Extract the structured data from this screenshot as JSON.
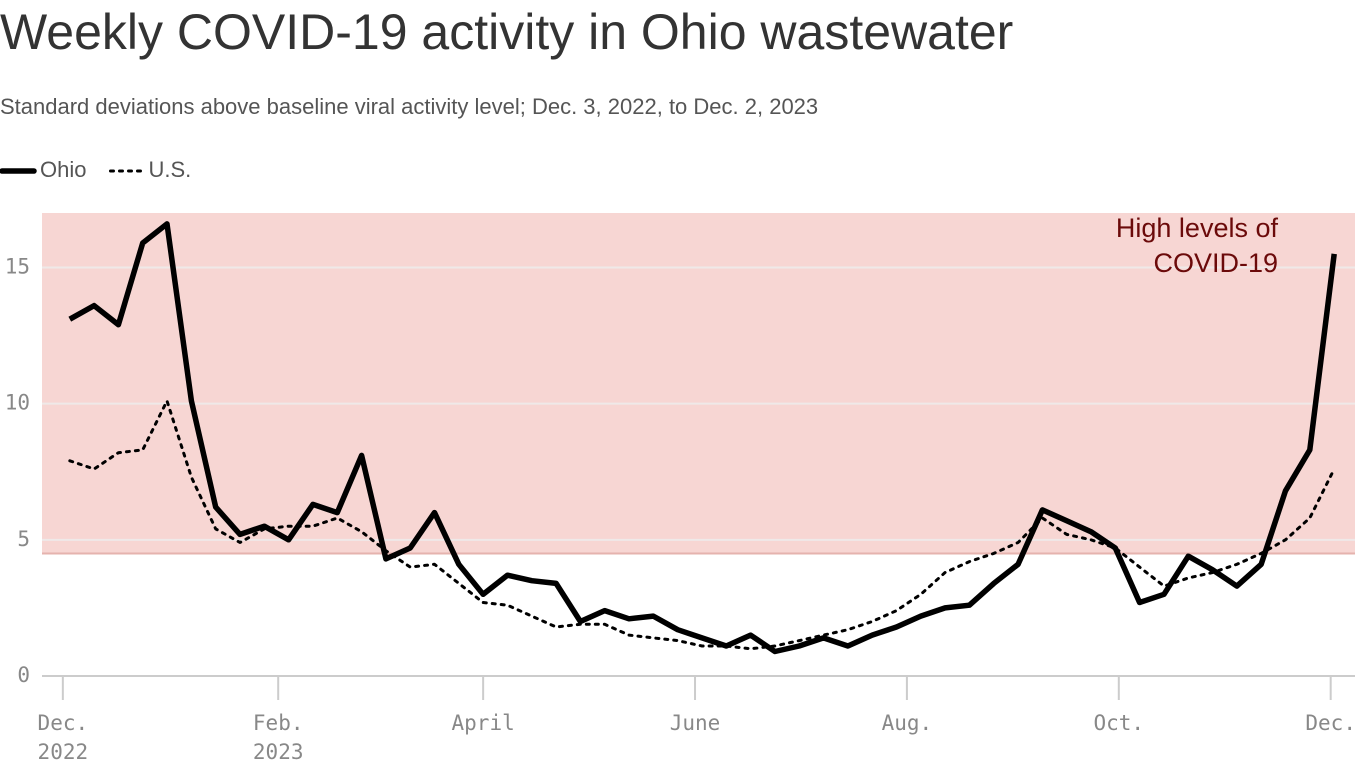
{
  "chart_data": {
    "type": "line",
    "title": "Weekly COVID-19 activity in Ohio wastewater",
    "subtitle": "Standard deviations above baseline viral activity level; Dec. 3, 2022, to Dec. 2, 2023",
    "x": [
      "2022-12-03",
      "2022-12-10",
      "2022-12-17",
      "2022-12-24",
      "2022-12-31",
      "2023-01-07",
      "2023-01-14",
      "2023-01-21",
      "2023-01-28",
      "2023-02-04",
      "2023-02-11",
      "2023-02-18",
      "2023-02-25",
      "2023-03-04",
      "2023-03-11",
      "2023-03-18",
      "2023-03-25",
      "2023-04-01",
      "2023-04-08",
      "2023-04-15",
      "2023-04-22",
      "2023-04-29",
      "2023-05-06",
      "2023-05-13",
      "2023-05-20",
      "2023-05-27",
      "2023-06-03",
      "2023-06-10",
      "2023-06-17",
      "2023-06-24",
      "2023-07-01",
      "2023-07-08",
      "2023-07-15",
      "2023-07-22",
      "2023-07-29",
      "2023-08-05",
      "2023-08-12",
      "2023-08-19",
      "2023-08-26",
      "2023-09-02",
      "2023-09-09",
      "2023-09-16",
      "2023-09-23",
      "2023-09-30",
      "2023-10-07",
      "2023-10-14",
      "2023-10-21",
      "2023-10-28",
      "2023-11-04",
      "2023-11-11",
      "2023-11-18",
      "2023-11-25",
      "2023-12-02"
    ],
    "series": [
      {
        "name": "Ohio",
        "color": "#000000",
        "style": "solid",
        "values": [
          13.1,
          13.6,
          12.9,
          15.9,
          16.6,
          10.1,
          6.2,
          5.2,
          5.5,
          5.0,
          6.3,
          6.0,
          8.1,
          4.3,
          4.7,
          6.0,
          4.1,
          3.0,
          3.7,
          3.5,
          3.4,
          2.0,
          2.4,
          2.1,
          2.2,
          1.7,
          1.4,
          1.1,
          1.5,
          0.9,
          1.1,
          1.4,
          1.1,
          1.5,
          1.8,
          2.2,
          2.5,
          2.6,
          3.4,
          4.1,
          6.1,
          5.7,
          5.3,
          4.7,
          2.7,
          3.0,
          4.4,
          3.9,
          3.3,
          4.1,
          6.8,
          8.3,
          15.5
        ]
      },
      {
        "name": "U.S.",
        "color": "#000000",
        "style": "dotted",
        "values": [
          7.9,
          7.6,
          8.2,
          8.3,
          10.1,
          7.3,
          5.4,
          4.9,
          5.4,
          5.5,
          5.5,
          5.8,
          5.3,
          4.6,
          4.0,
          4.1,
          3.4,
          2.7,
          2.6,
          2.2,
          1.8,
          1.9,
          1.9,
          1.5,
          1.4,
          1.3,
          1.1,
          1.1,
          1.0,
          1.1,
          1.3,
          1.5,
          1.7,
          2.0,
          2.4,
          3.0,
          3.8,
          4.2,
          4.5,
          4.9,
          5.8,
          5.2,
          5.0,
          4.7,
          4.0,
          3.3,
          3.6,
          3.8,
          4.1,
          4.5,
          5.0,
          5.8,
          7.6
        ]
      }
    ],
    "xlim": [
      "2022-11-25",
      "2023-12-08"
    ],
    "xticks": [
      {
        "value": "2022-12-01",
        "label": "Dec.\n2022"
      },
      {
        "value": "2023-02-01",
        "label": "Feb.\n2023"
      },
      {
        "value": "2023-04-01",
        "label": "April"
      },
      {
        "value": "2023-06-01",
        "label": "June"
      },
      {
        "value": "2023-08-01",
        "label": "Aug."
      },
      {
        "value": "2023-10-01",
        "label": "Oct."
      },
      {
        "value": "2023-12-01",
        "label": "Dec."
      }
    ],
    "ylim": [
      0,
      17
    ],
    "yticks": [
      0,
      5,
      10,
      15
    ],
    "grid": true,
    "band": {
      "from": 4.5,
      "to": 17,
      "color": "#f7d6d3",
      "edge_color": "#e5b3ae"
    },
    "annotation": {
      "lines": [
        "High levels of",
        "COVID-19"
      ],
      "color": "#6b0a0a"
    },
    "legend": "top-left"
  }
}
